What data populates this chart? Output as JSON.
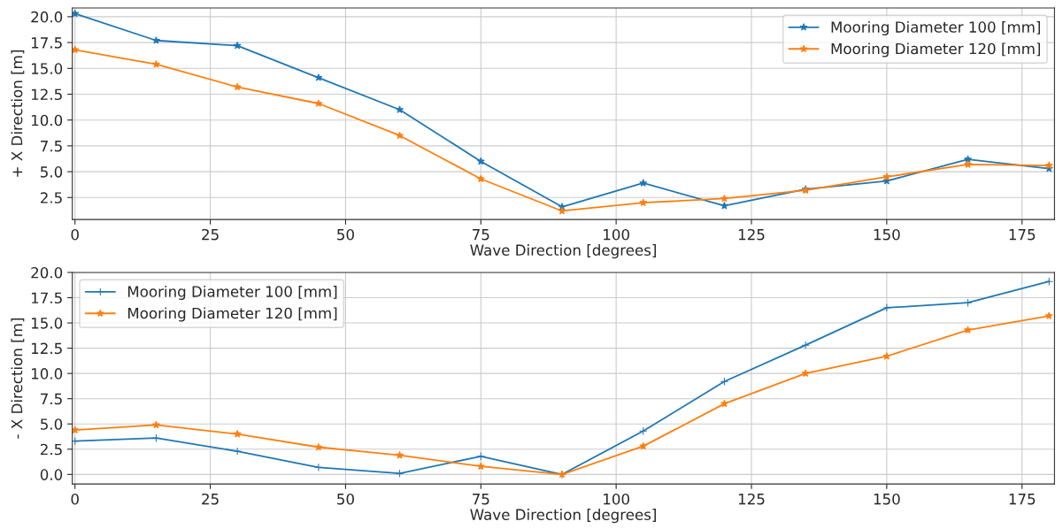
{
  "chart_data": [
    {
      "type": "line",
      "xlabel": "Wave Direction [degrees]",
      "ylabel": "+ X Direction [m]",
      "x": [
        0,
        15,
        30,
        45,
        60,
        75,
        90,
        105,
        120,
        135,
        150,
        165,
        180
      ],
      "series": [
        {
          "name": "Mooring Diameter 100 [mm]",
          "color": "#1f77b4",
          "marker": "star",
          "values": [
            20.3,
            17.7,
            17.2,
            14.1,
            11.0,
            6.0,
            1.6,
            3.9,
            1.7,
            3.3,
            4.1,
            6.2,
            5.3
          ]
        },
        {
          "name": "Mooring Diameter 120 [mm]",
          "color": "#ff7f0e",
          "marker": "star",
          "values": [
            16.8,
            15.4,
            13.2,
            11.6,
            8.5,
            4.3,
            1.2,
            2.0,
            2.4,
            3.2,
            4.5,
            5.7,
            5.6
          ]
        }
      ],
      "xlim": [
        -0.5,
        181
      ],
      "xticks": [
        0,
        25,
        50,
        75,
        100,
        125,
        150,
        175
      ],
      "ylim": [
        0.37,
        20.85
      ],
      "yticks": [
        2.5,
        {
          "value": 5,
          "label": "5.0"
        },
        7.5,
        {
          "value": 10,
          "label": "10.0"
        },
        12.5,
        {
          "value": 15,
          "label": "15.0"
        },
        17.5,
        {
          "value": 20,
          "label": "20.0"
        }
      ],
      "grid": true,
      "legend": "top right",
      "line_style": "solid"
    },
    {
      "type": "line",
      "xlabel": "Wave Direction [degrees]",
      "ylabel": "- X Direction [m]",
      "x": [
        0,
        15,
        30,
        45,
        60,
        75,
        90,
        105,
        120,
        135,
        150,
        165,
        180
      ],
      "series": [
        {
          "name": "Mooring Diameter 100 [mm]",
          "color": "#1f77b4",
          "marker": "cross",
          "values": [
            3.3,
            3.6,
            2.3,
            0.7,
            0.1,
            1.8,
            0,
            4.3,
            9.2,
            12.8,
            16.5,
            17,
            19.1
          ]
        },
        {
          "name": "Mooring Diameter 120 [mm]",
          "color": "#ff7f0e",
          "marker": "star",
          "values": [
            4.4,
            4.9,
            4.0,
            2.7,
            1.9,
            0.8,
            0,
            2.8,
            7,
            10,
            11.7,
            14.3,
            15.7
          ]
        }
      ],
      "xlim": [
        -0.5,
        181
      ],
      "xticks": [
        0,
        25,
        50,
        75,
        100,
        125,
        150,
        175
      ],
      "ylim": [
        -0.95,
        20.0
      ],
      "yticks": [
        {
          "value": 0,
          "label": "0.0"
        },
        2.5,
        {
          "value": 5,
          "label": "5.0"
        },
        7.5,
        {
          "value": 10,
          "label": "10.0"
        },
        12.5,
        {
          "value": 15,
          "label": "15.0"
        },
        17.5,
        {
          "value": 20,
          "label": "20.0"
        }
      ],
      "grid": true,
      "legend": "top left",
      "line_style": "solid"
    }
  ]
}
